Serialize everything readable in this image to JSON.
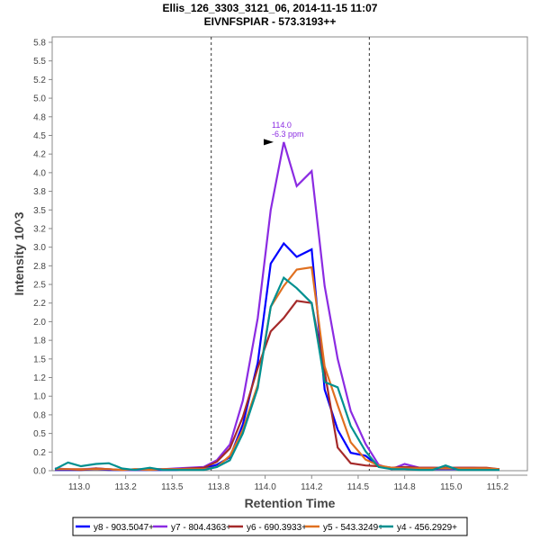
{
  "chart_data": {
    "type": "line",
    "title": "Ellis_126_3303_3121_06, 2014-11-15 11:07",
    "subtitle": "EIVNFSPIAR - 573.3193++",
    "xlabel": "Retention Time",
    "ylabel": "Intensity 10^3",
    "xlim": [
      112.855,
      115.41
    ],
    "ylim": [
      0,
      5.75
    ],
    "xticks": [
      113.0,
      113.25,
      113.5,
      113.75,
      114.0,
      114.25,
      114.5,
      114.75,
      115.0,
      115.25
    ],
    "xtick_labels": [
      "113.0",
      "113.2",
      "113.5",
      "113.8",
      "114.0",
      "114.2",
      "114.5",
      "114.8",
      "115.0",
      "115.2"
    ],
    "yticks": [
      0,
      0.25,
      0.5,
      0.75,
      1.0,
      1.25,
      1.5,
      1.75,
      2.0,
      2.25,
      2.5,
      2.75,
      3.0,
      3.25,
      3.5,
      3.75,
      4.0,
      4.25,
      4.5,
      4.75,
      5.0,
      5.25,
      5.5,
      5.75
    ],
    "ytick_labels": [
      "0.0",
      "0.2",
      "0.5",
      "0.8",
      "1.0",
      "1.2",
      "1.5",
      "1.8",
      "2.0",
      "2.2",
      "2.5",
      "2.8",
      "3.0",
      "3.2",
      "3.5",
      "3.8",
      "4.0",
      "4.2",
      "4.5",
      "4.8",
      "5.0",
      "5.2",
      "5.5",
      "5.8"
    ],
    "grid": false,
    "integration_bounds": [
      113.71,
      114.56
    ],
    "annotation": {
      "x": 114.06,
      "y": 4.41,
      "lines": [
        "114.0",
        "-6.3 ppm"
      ],
      "color": "#8b2be2"
    },
    "x": [
      112.87,
      112.94,
      113.01,
      113.09,
      113.16,
      113.23,
      113.3,
      113.38,
      113.45,
      113.52,
      113.59,
      113.67,
      113.74,
      113.81,
      113.88,
      113.96,
      114.03,
      114.1,
      114.17,
      114.25,
      114.32,
      114.39,
      114.46,
      114.54,
      114.61,
      114.68,
      114.75,
      114.83,
      114.9,
      114.97,
      115.04,
      115.12,
      115.19,
      115.26
    ],
    "series": [
      {
        "name": "y8 - 903.5047+",
        "color": "#0000ff",
        "values": [
          0.01,
          0.01,
          0.01,
          0.02,
          0.01,
          0.01,
          0.01,
          0.01,
          0.01,
          0.01,
          0.02,
          0.03,
          0.08,
          0.18,
          0.62,
          1.45,
          2.78,
          3.05,
          2.87,
          2.97,
          1.09,
          0.55,
          0.24,
          0.2,
          0.06,
          0.04,
          0.03,
          0.02,
          0.02,
          0.02,
          0.02,
          0.02,
          0.02,
          0.02
        ]
      },
      {
        "name": "y7 - 804.4363+",
        "color": "#8b2be2",
        "values": [
          0.03,
          0.02,
          0.02,
          0.03,
          0.02,
          0.01,
          0.01,
          0.02,
          0.02,
          0.03,
          0.04,
          0.05,
          0.14,
          0.35,
          0.94,
          2.05,
          3.5,
          4.41,
          3.82,
          4.02,
          2.48,
          1.5,
          0.8,
          0.36,
          0.08,
          0.02,
          0.09,
          0.04,
          0.04,
          0.03,
          0.04,
          0.04,
          0.03,
          0.02
        ]
      },
      {
        "name": "y6 - 690.3933+",
        "color": "#a52a2a",
        "values": [
          0.02,
          0.02,
          0.01,
          0.03,
          0.02,
          0.01,
          0.02,
          0.02,
          0.02,
          0.02,
          0.03,
          0.04,
          0.12,
          0.3,
          0.72,
          1.38,
          1.87,
          2.05,
          2.28,
          2.25,
          1.33,
          0.31,
          0.1,
          0.07,
          0.06,
          0.04,
          0.05,
          0.04,
          0.04,
          0.04,
          0.04,
          0.04,
          0.04,
          0.02
        ]
      },
      {
        "name": "y5 - 543.3249+",
        "color": "#e07020",
        "values": [
          0.02,
          0.02,
          0.02,
          0.02,
          0.02,
          0.01,
          0.02,
          0.01,
          0.02,
          0.02,
          0.02,
          0.02,
          0.05,
          0.2,
          0.55,
          1.15,
          2.2,
          2.48,
          2.7,
          2.73,
          1.4,
          0.88,
          0.38,
          0.15,
          0.07,
          0.04,
          0.03,
          0.03,
          0.03,
          0.03,
          0.03,
          0.03,
          0.03,
          0.02
        ]
      },
      {
        "name": "y4 - 456.2929+",
        "color": "#009090",
        "values": [
          0.02,
          0.11,
          0.06,
          0.09,
          0.1,
          0.03,
          0.01,
          0.04,
          0.01,
          0.01,
          0.01,
          0.01,
          0.05,
          0.14,
          0.5,
          1.11,
          2.2,
          2.59,
          2.45,
          2.25,
          1.19,
          1.12,
          0.6,
          0.26,
          0.05,
          0.02,
          0.02,
          0.01,
          0.01,
          0.07,
          0.01,
          0.01,
          0.01,
          0.01
        ]
      }
    ]
  }
}
